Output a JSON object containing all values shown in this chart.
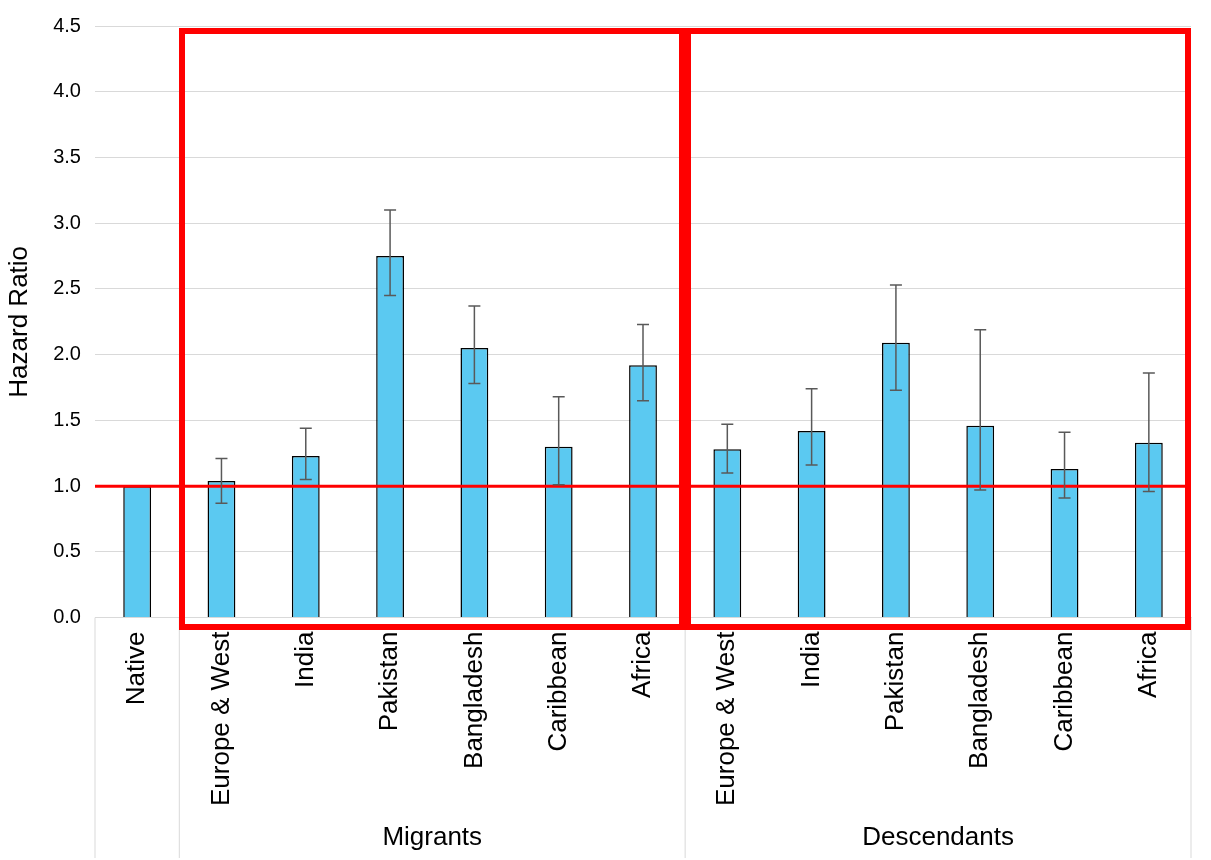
{
  "chart_data": {
    "type": "bar",
    "ylabel": "Hazard Ratio",
    "categories": [
      "Native",
      "Europe & West",
      "India",
      "Pakistan",
      "Bangladesh",
      "Caribbean",
      "Africa",
      "Europe & West",
      "India",
      "Pakistan",
      "Bangladesh",
      "Caribbean",
      "Africa"
    ],
    "values": [
      1.0,
      1.04,
      1.23,
      2.75,
      2.05,
      1.3,
      1.92,
      1.28,
      1.42,
      2.09,
      1.46,
      1.13,
      1.33
    ],
    "errors": [
      null,
      [
        0.87,
        1.21
      ],
      [
        1.05,
        1.44
      ],
      [
        2.45,
        3.1
      ],
      [
        1.78,
        2.37
      ],
      [
        1.01,
        1.68
      ],
      [
        1.65,
        2.23
      ],
      [
        1.1,
        1.47
      ],
      [
        1.16,
        1.74
      ],
      [
        1.73,
        2.53
      ],
      [
        0.97,
        2.19
      ],
      [
        0.91,
        1.41
      ],
      [
        0.96,
        1.86
      ]
    ],
    "color": "#5bc9f1",
    "ylim": [
      0,
      4.5
    ],
    "yticks": [
      {
        "value": 0,
        "label": "0.0"
      },
      {
        "value": 0.5,
        "label": "0.5"
      },
      {
        "value": 1,
        "label": "1.0"
      },
      {
        "value": 1.5,
        "label": "1.5"
      },
      {
        "value": 2,
        "label": "2.0"
      },
      {
        "value": 2.5,
        "label": "2.5"
      },
      {
        "value": 3,
        "label": "3.0"
      },
      {
        "value": 3.5,
        "label": "3.5"
      },
      {
        "value": 4,
        "label": "4.0"
      },
      {
        "value": 4.5,
        "label": "4.5"
      }
    ],
    "grid": "y",
    "legend": false,
    "ref_lines": [
      {
        "axis": "y",
        "value": 1,
        "color": "#ff0000"
      }
    ],
    "annotations": [
      "Migrants",
      "Descendants"
    ]
  }
}
